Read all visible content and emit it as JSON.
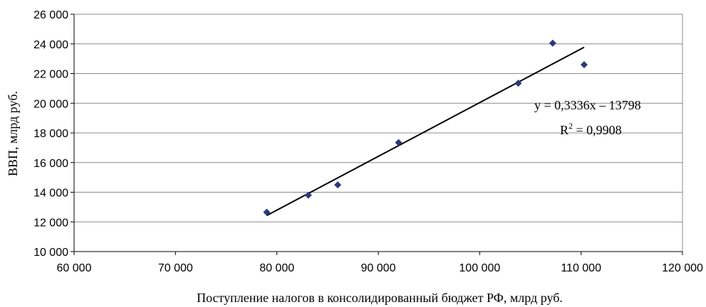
{
  "chart_data": {
    "type": "scatter",
    "title": "",
    "xlabel": "Поступление налогов в консолидированный бюджет РФ, млрд руб.",
    "ylabel": "ВВП, млрд руб.",
    "xlim": [
      60000,
      120000
    ],
    "ylim": [
      10000,
      26000
    ],
    "x_ticks": [
      60000,
      70000,
      80000,
      90000,
      100000,
      110000,
      120000
    ],
    "y_ticks": [
      10000,
      12000,
      14000,
      16000,
      18000,
      20000,
      22000,
      24000,
      26000
    ],
    "x_tick_labels": [
      "60 000",
      "70 000",
      "80 000",
      "90 000",
      "100 000",
      "110 000",
      "120 000"
    ],
    "y_tick_labels": [
      "10 000",
      "12 000",
      "14 000",
      "16 000",
      "18 000",
      "20 000",
      "22 000",
      "24 000",
      "26 000"
    ],
    "grid": true,
    "legend": "none",
    "marker_color": "#2b3a7a",
    "series": [
      {
        "points": [
          {
            "x": 79000,
            "y": 12650
          },
          {
            "x": 83100,
            "y": 13800
          },
          {
            "x": 86000,
            "y": 14500
          },
          {
            "x": 92000,
            "y": 17350
          },
          {
            "x": 103800,
            "y": 21350
          },
          {
            "x": 107200,
            "y": 24050
          },
          {
            "x": 110300,
            "y": 22600
          }
        ]
      }
    ],
    "trendline": {
      "x_start": 79000,
      "x_end": 110300
    },
    "annotations": {
      "equation": "y = 0,3336x – 13798",
      "r2_prefix": "R",
      "r2_sup": "2",
      "r2_value": " = 0,9908"
    }
  }
}
